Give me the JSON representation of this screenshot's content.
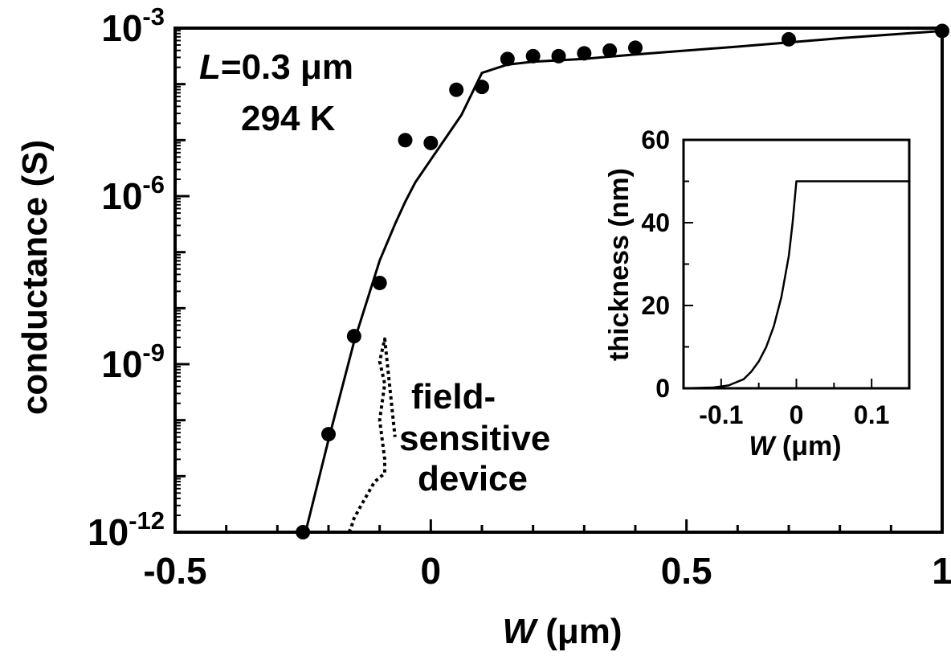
{
  "chart_data": [
    {
      "type": "scatter",
      "xlabel": {
        "var": "W",
        "unit": " (μm)"
      },
      "ylabel": "conductance (S)",
      "xlim": [
        -0.5,
        1
      ],
      "ylim_log10": [
        -12,
        -3
      ],
      "yscale": "log",
      "x_ticks": [
        -0.5,
        0,
        0.5,
        1
      ],
      "x_tick_labels": [
        "-0.5",
        "0",
        "0.5",
        "1"
      ],
      "y_ticks_log10": [
        -12,
        -9,
        -6,
        -3
      ],
      "y_tick_labels": [
        {
          "base": "10",
          "exp": "-12"
        },
        {
          "base": "10",
          "exp": "-9"
        },
        {
          "base": "10",
          "exp": "-6"
        },
        {
          "base": "10",
          "exp": "-3"
        }
      ],
      "annotations": {
        "length": {
          "var": "L",
          "rest": "=0.3 μm"
        },
        "temperature": "294 K",
        "device_label": [
          "field-",
          "sensitive",
          "device"
        ]
      },
      "series": [
        {
          "kind": "points",
          "x": [
            -0.25,
            -0.2,
            -0.15,
            -0.1,
            -0.05,
            0,
            0.05,
            0.1,
            0.15,
            0.2,
            0.25,
            0.3,
            0.35,
            0.4,
            0.7,
            1.0
          ],
          "y_log10": [
            -12.0,
            -10.25,
            -8.5,
            -7.55,
            -5.0,
            -5.05,
            -4.1,
            -4.05,
            -3.55,
            -3.5,
            -3.5,
            -3.45,
            -3.4,
            -3.35,
            -3.2,
            -3.05
          ]
        },
        {
          "kind": "fit_line",
          "style": "solid",
          "x": [
            -0.245,
            -0.2,
            -0.15,
            -0.1,
            -0.07,
            -0.05,
            -0.03,
            0,
            0.03,
            0.06,
            0.1,
            0.15,
            0.2,
            0.3,
            0.4,
            0.6,
            0.8,
            1.0
          ],
          "y_log10": [
            -12.0,
            -10.35,
            -8.6,
            -7.15,
            -6.5,
            -6.1,
            -5.75,
            -5.35,
            -4.95,
            -4.55,
            -3.8,
            -3.65,
            -3.6,
            -3.55,
            -3.47,
            -3.33,
            -3.18,
            -3.05
          ]
        },
        {
          "kind": "device_bracket",
          "style": "dotted",
          "x": [
            -0.16,
            -0.155,
            -0.15,
            -0.135,
            -0.11,
            -0.09,
            -0.09,
            -0.1,
            -0.09,
            -0.1,
            -0.09,
            -0.07
          ],
          "y_log10": [
            -12.0,
            -11.9,
            -11.75,
            -11.5,
            -11.1,
            -10.95,
            -10.7,
            -10.0,
            -9.35,
            -8.95,
            -8.55,
            -10.3
          ]
        }
      ]
    },
    {
      "type": "line",
      "inset": true,
      "xlabel": {
        "var": "W",
        "unit": " (μm)"
      },
      "ylabel": "thickness (nm)",
      "xlim": [
        -0.15,
        0.15
      ],
      "ylim": [
        0,
        60
      ],
      "x_ticks": [
        -0.1,
        0,
        0.1
      ],
      "x_tick_labels": [
        "-0.1",
        "0",
        "0.1"
      ],
      "y_ticks": [
        0,
        20,
        40,
        60
      ],
      "y_tick_labels": [
        "0",
        "20",
        "40",
        "60"
      ],
      "series": [
        {
          "x": [
            -0.15,
            -0.11,
            -0.09,
            -0.07,
            -0.06,
            -0.05,
            -0.04,
            -0.03,
            -0.02,
            -0.01,
            -0.005,
            0,
            0.15
          ],
          "y": [
            0,
            0.2,
            0.7,
            2.2,
            4,
            6.5,
            10,
            15,
            22,
            32,
            40,
            50,
            50
          ]
        }
      ]
    }
  ]
}
